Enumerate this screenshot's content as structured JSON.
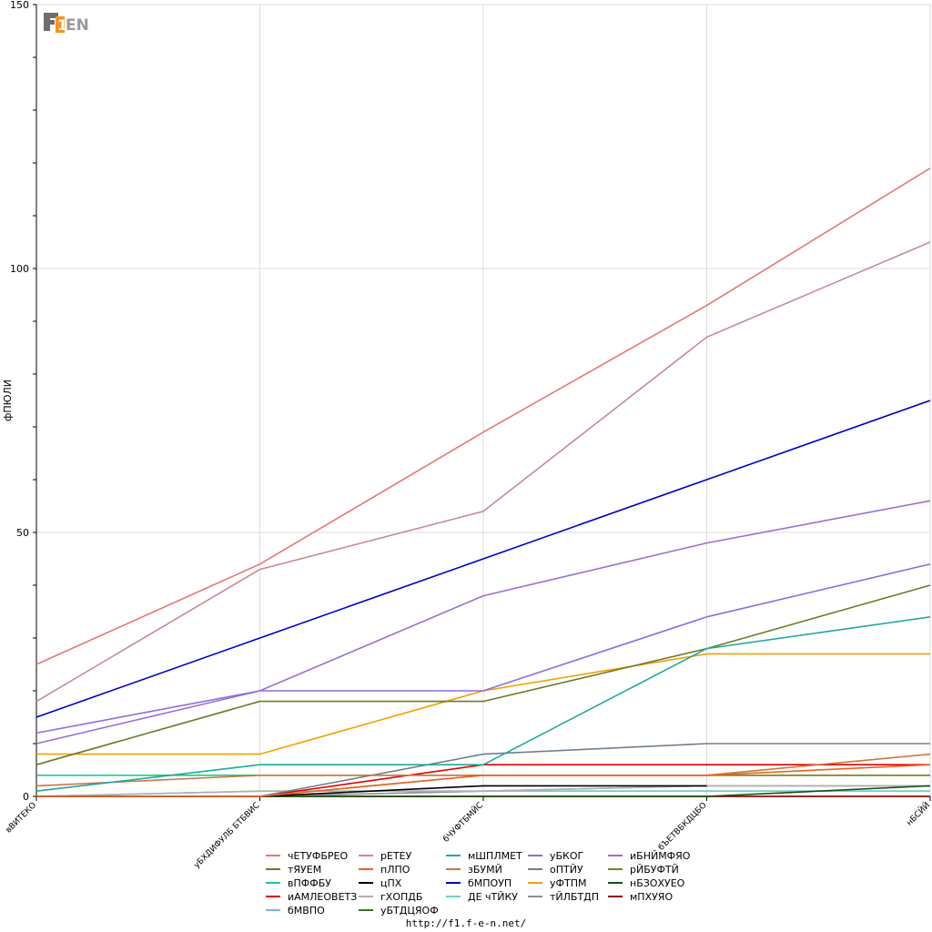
{
  "logo": {
    "text": "F1EN",
    "colors": {
      "f": "#6e6e6e",
      "one": "#f7941d",
      "en": "#9a9a9a"
    }
  },
  "footer": {
    "url": "http://f1.f-e-n.net/"
  },
  "chart_data": {
    "type": "line",
    "title": "",
    "xlabel": "",
    "ylabel": "фПЮЛИ",
    "ylim": [
      0,
      150
    ],
    "yticks": [
      0,
      50,
      100,
      150
    ],
    "grid": true,
    "legend_position": "bottom",
    "categories": [
      "вВИТЕКО",
      "уБХДИФУЛБ БТБВИС",
      "бЧУФТБМЙС",
      "бЪЕТВБКДЦБО",
      "нБСЙЙ"
    ],
    "series": [
      {
        "name": "чЕТУФБРЕО",
        "color": "#e87575",
        "values": [
          25,
          44,
          69,
          93,
          119
        ]
      },
      {
        "name": "рЕТЕУ",
        "color": "#c98a8f",
        "values": [
          18,
          43,
          54,
          87,
          105
        ]
      },
      {
        "name": "мШПЛМЕТ",
        "color": "#20a8a0",
        "values": [
          1,
          6,
          6,
          28,
          34
        ]
      },
      {
        "name": "уБКОГ",
        "color": "#8b6fe0",
        "values": [
          12,
          20,
          20,
          34,
          44
        ]
      },
      {
        "name": "иБНЙМФЯО",
        "color": "#9b6fd0",
        "values": [
          10,
          20,
          38,
          48,
          56
        ]
      },
      {
        "name": "тЯУЕМ",
        "color": "#6b7a28",
        "values": [
          6,
          18,
          18,
          28,
          40
        ]
      },
      {
        "name": "пЛПО",
        "color": "#f06020",
        "values": [
          0,
          0,
          4,
          4,
          6
        ]
      },
      {
        "name": "зБУМЙ",
        "color": "#c87840",
        "values": [
          2,
          4,
          4,
          4,
          8
        ]
      },
      {
        "name": "оПТЙУ",
        "color": "#708090",
        "values": [
          0,
          0,
          8,
          10,
          10
        ]
      },
      {
        "name": "рЙБУФТЙ",
        "color": "#808020",
        "values": [
          0,
          0,
          4,
          4,
          4
        ]
      },
      {
        "name": "вПФФБУ",
        "color": "#20c890",
        "values": [
          4,
          4,
          4,
          4,
          4
        ]
      },
      {
        "name": "цПХ",
        "color": "#000000",
        "values": [
          0,
          0,
          2,
          2,
          null
        ]
      },
      {
        "name": "бМПОУП",
        "color": "#0000c8",
        "values": [
          15,
          30,
          45,
          60,
          75
        ]
      },
      {
        "name": "уФТПМ",
        "color": "#f0a000",
        "values": [
          8,
          8,
          20,
          27,
          27
        ]
      },
      {
        "name": "нБЗОХУЕО",
        "color": "#105010",
        "values": [
          0,
          0,
          0,
          0,
          2
        ]
      },
      {
        "name": "иАМЛЕОВЕТЗ",
        "color": "#e00000",
        "values": [
          0,
          0,
          6,
          6,
          6
        ]
      },
      {
        "name": "гХОПДБ",
        "color": "#b0b0b0",
        "values": [
          0,
          1,
          1,
          2,
          2
        ]
      },
      {
        "name": "ДЕ чТЙКУ",
        "color": "#70d0c0",
        "values": [
          0,
          1,
          1,
          1,
          1
        ]
      },
      {
        "name": "тЙЛБТДП",
        "color": "#909090",
        "values": [
          0,
          0,
          1,
          2,
          2
        ]
      },
      {
        "name": "мПХУЯО",
        "color": "#900000",
        "values": [
          0,
          0,
          0,
          0,
          0
        ]
      },
      {
        "name": "бМВПО",
        "color": "#80b8c8",
        "values": [
          0,
          0,
          1,
          1,
          1
        ]
      },
      {
        "name": "уБТДЦЯОФ",
        "color": "#407020",
        "values": [
          0,
          0,
          0,
          0,
          0
        ]
      }
    ],
    "legend_order": [
      "чЕТУФБРЕО",
      "рЕТЕУ",
      "мШПЛМЕТ",
      "уБКОГ",
      "иБНЙМФЯО",
      "тЯУЕМ",
      "пЛПО",
      "зБУМЙ",
      "оПТЙУ",
      "рЙБУФТЙ",
      "вПФФБУ",
      "цПХ",
      "бМПОУП",
      "уФТПМ",
      "нБЗОХУЕО",
      "иАМЛЕОВЕТЗ",
      "гХОПДБ",
      "ДЕ чТЙКУ",
      "тЙЛБТДП",
      "мПХУЯО",
      "бМВПО",
      "уБТДЦЯОФ"
    ]
  }
}
